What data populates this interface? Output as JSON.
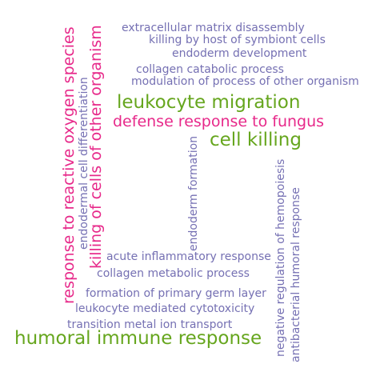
{
  "colors": {
    "purple": "#7570b3",
    "green": "#66a61e",
    "pink": "#e7298a"
  },
  "words": {
    "w01": "extracellular matrix disassembly",
    "w02": "killing by host of symbiont cells",
    "w03": "endoderm development",
    "w04": "collagen catabolic process",
    "w05": "modulation of process of other organism",
    "w06": "leukocyte migration",
    "w07": "defense response to fungus",
    "w08": "cell killing",
    "w09": "response to reactive oxygen species",
    "w10": "endodermal cell differentiation",
    "w11": "killing of cells of other organism",
    "w12": "endoderm formation",
    "w13": "negative regulation of hemopoiesis",
    "w14": "antibacterial humoral response",
    "w15": "acute inflammatory response",
    "w16": "collagen metabolic process",
    "w17": "formation of primary germ layer",
    "w18": "leukocyte mediated cytotoxicity",
    "w19": "transition metal ion transport",
    "w20": "humoral immune response"
  }
}
